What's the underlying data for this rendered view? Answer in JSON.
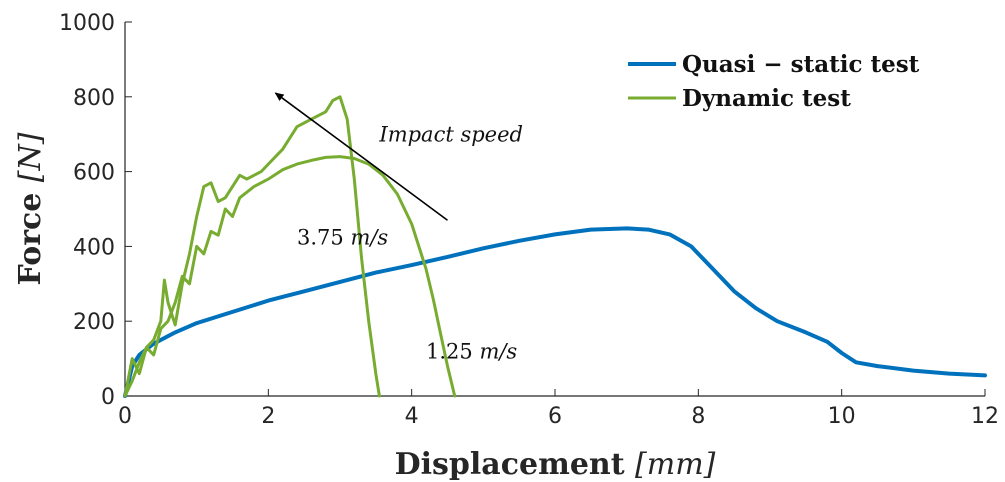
{
  "chart_data": {
    "type": "line",
    "title": "",
    "xlabel": {
      "text": "Displacement",
      "unit": "[mm]"
    },
    "ylabel": {
      "text": "Force",
      "unit": "[N]"
    },
    "xlim": [
      0,
      12
    ],
    "ylim": [
      0,
      1000
    ],
    "xticks": [
      0,
      2,
      4,
      6,
      8,
      10,
      12
    ],
    "yticks": [
      0,
      200,
      400,
      600,
      800,
      1000
    ],
    "grid": false,
    "legend_position": "top-right",
    "colors": {
      "quasi": "#0072BD",
      "dynamic": "#77AC30"
    },
    "series": [
      {
        "name": "Quasi − static test",
        "color": "#0072BD",
        "x": [
          0,
          0.1,
          0.2,
          0.4,
          0.7,
          1.0,
          1.5,
          2.0,
          2.5,
          3.0,
          3.5,
          4.0,
          4.5,
          5.0,
          5.5,
          6.0,
          6.5,
          7.0,
          7.3,
          7.6,
          7.9,
          8.2,
          8.5,
          8.8,
          9.1,
          9.5,
          9.8,
          10.0,
          10.2,
          10.5,
          11.0,
          11.5,
          12.0
        ],
        "y": [
          0,
          80,
          110,
          140,
          170,
          195,
          225,
          255,
          280,
          305,
          330,
          350,
          372,
          395,
          415,
          432,
          445,
          448,
          445,
          432,
          400,
          340,
          280,
          235,
          200,
          170,
          145,
          115,
          90,
          80,
          68,
          60,
          55
        ]
      },
      {
        "name": "Dynamic test",
        "label": "3.75 m/s",
        "color": "#77AC30",
        "x": [
          0,
          0.1,
          0.2,
          0.3,
          0.4,
          0.5,
          0.55,
          0.6,
          0.7,
          0.8,
          0.9,
          1.0,
          1.1,
          1.2,
          1.3,
          1.4,
          1.5,
          1.6,
          1.7,
          1.8,
          1.9,
          2.0,
          2.2,
          2.4,
          2.6,
          2.8,
          2.9,
          3.0,
          3.1,
          3.2,
          3.3,
          3.4,
          3.5,
          3.55
        ],
        "y": [
          0,
          40,
          90,
          130,
          150,
          200,
          310,
          250,
          190,
          300,
          380,
          480,
          560,
          570,
          520,
          530,
          560,
          590,
          580,
          590,
          600,
          620,
          660,
          720,
          740,
          760,
          790,
          800,
          740,
          580,
          370,
          200,
          60,
          0
        ]
      },
      {
        "name": "",
        "label": "1.25 m/s",
        "color": "#77AC30",
        "x": [
          0,
          0.1,
          0.2,
          0.3,
          0.4,
          0.5,
          0.6,
          0.7,
          0.8,
          0.9,
          1.0,
          1.1,
          1.2,
          1.3,
          1.4,
          1.5,
          1.6,
          1.8,
          2.0,
          2.2,
          2.4,
          2.6,
          2.8,
          3.0,
          3.2,
          3.4,
          3.6,
          3.8,
          4.0,
          4.2,
          4.3,
          4.4,
          4.5,
          4.6
        ],
        "y": [
          0,
          100,
          60,
          130,
          110,
          180,
          200,
          250,
          320,
          300,
          400,
          380,
          440,
          430,
          500,
          480,
          530,
          560,
          580,
          605,
          620,
          630,
          638,
          640,
          635,
          620,
          590,
          540,
          460,
          340,
          260,
          170,
          80,
          0
        ]
      }
    ],
    "annotations": {
      "arrow_label": "Impact speed",
      "arrow": {
        "from": [
          4.5,
          470
        ],
        "to": [
          2.1,
          810
        ]
      },
      "speed_high": {
        "text": "3.75",
        "unit": "m/s",
        "at": [
          2.4,
          405
        ]
      },
      "speed_low": {
        "text": "1.25",
        "unit": "m/s",
        "at": [
          4.2,
          100
        ]
      }
    }
  }
}
